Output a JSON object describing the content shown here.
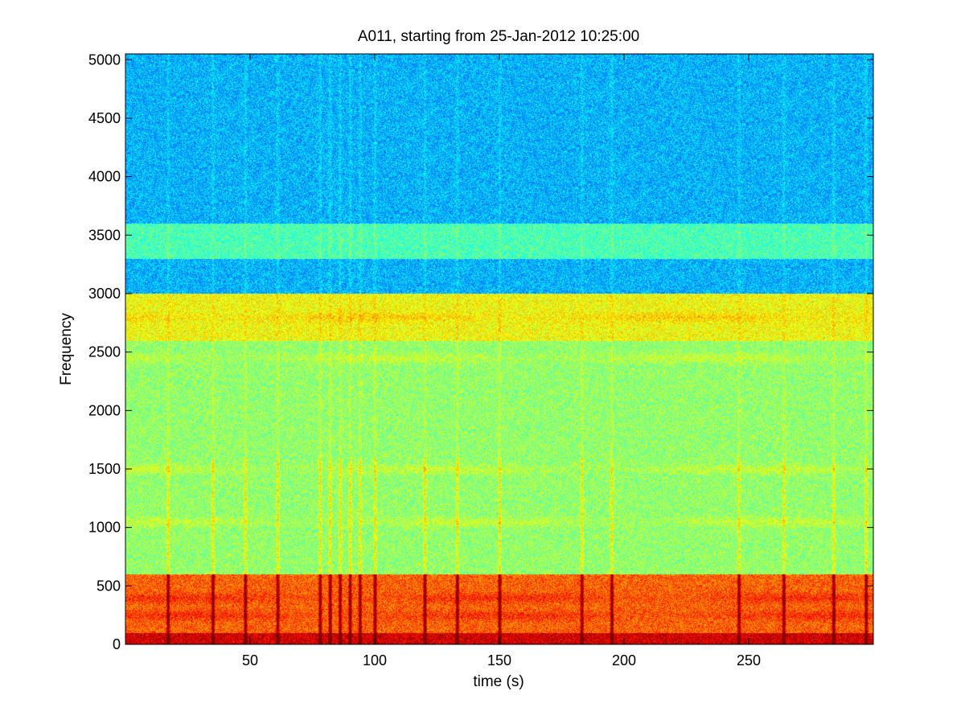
{
  "chart_data": {
    "type": "heatmap",
    "subtype": "spectrogram",
    "title": "A011, starting from 25-Jan-2012 10:25:00",
    "xlabel": "time (s)",
    "ylabel": "Frequency",
    "xlim": [
      0,
      300
    ],
    "ylim": [
      0,
      5050
    ],
    "xticks": [
      50,
      100,
      150,
      200,
      250
    ],
    "yticks": [
      0,
      500,
      1000,
      1500,
      2000,
      2500,
      3000,
      3500,
      4000,
      4500,
      5000
    ],
    "colormap": "jet",
    "grid": false,
    "legend": "none",
    "colors": {
      "low": "#1ec8e0",
      "mid": "#5fe890",
      "high": "#f0f020",
      "peak": "#e01010"
    },
    "features": {
      "band_intensity": [
        {
          "freq_range": [
            3600,
            5050
          ],
          "level": 0.3
        },
        {
          "freq_range": [
            3300,
            3600
          ],
          "level": 0.45
        },
        {
          "freq_range": [
            2600,
            3000
          ],
          "level": 0.62
        },
        {
          "freq_range": [
            600,
            2600
          ],
          "level": 0.52
        },
        {
          "freq_range": [
            100,
            600
          ],
          "level": 0.78
        },
        {
          "freq_range": [
            0,
            100
          ],
          "level": 0.92
        }
      ],
      "tonal_lines_hz": [
        2800,
        2450,
        1500,
        1050,
        400,
        250
      ],
      "broadband_events_time_s": [
        17,
        35,
        48,
        61,
        78,
        82,
        86,
        90,
        94,
        100,
        120,
        133,
        150,
        183,
        195,
        246,
        264,
        284,
        297
      ]
    }
  }
}
